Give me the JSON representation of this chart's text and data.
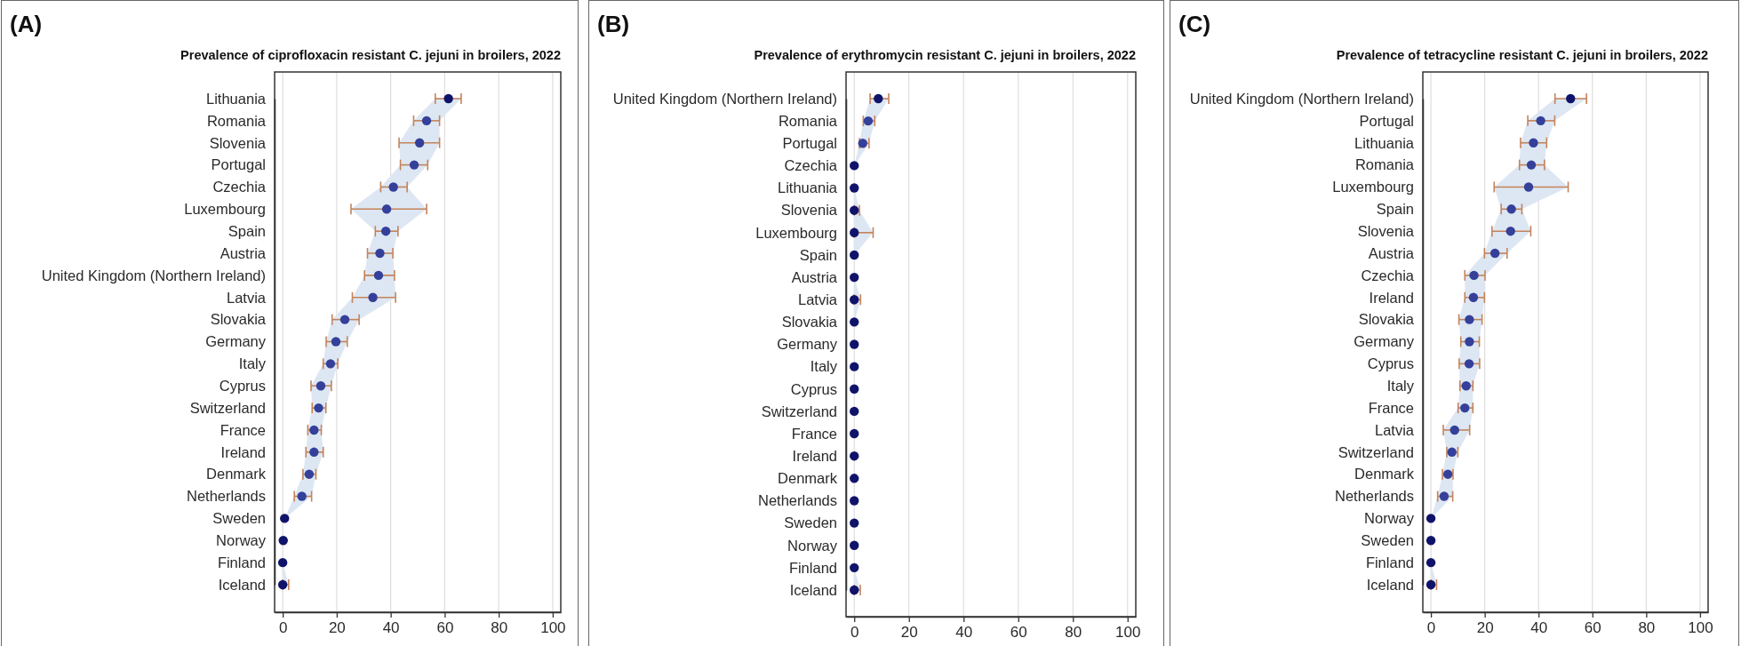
{
  "chart_data": [
    {
      "type": "scatter",
      "orientation": "horizontal",
      "title": "Prevalence of ciprofloxacin resistant C. jejuni in broilers, 2022",
      "annotations": [
        "(A)"
      ],
      "categories": [
        "Lithuania",
        "Romania",
        "Slovenia",
        "Portugal",
        "Czechia",
        "Luxembourg",
        "Spain",
        "Austria",
        "United Kingdom (Northern Ireland)",
        "Latvia",
        "Slovakia",
        "Germany",
        "Italy",
        "Cyprus",
        "Switzerland",
        "France",
        "Ireland",
        "Denmark",
        "Netherlands",
        "Sweden",
        "Norway",
        "Finland",
        "Iceland"
      ],
      "series": [
        {
          "values": [
            61.4,
            53.3,
            50.7,
            48.7,
            41.0,
            38.5,
            38.2,
            36.0,
            35.5,
            33.4,
            23.0,
            19.7,
            17.7,
            14.1,
            13.3,
            11.6,
            11.6,
            9.8,
            7.1,
            0.7,
            0.2,
            0,
            0
          ],
          "colors": [
            "#10136a",
            "#34409a",
            "#34409a",
            "#34409a",
            "#34409a",
            "#34409a",
            "#34409a",
            "#34409a",
            "#34409a",
            "#34409a",
            "#34409a",
            "#34409a",
            "#34409a",
            "#34409a",
            "#34409a",
            "#34409a",
            "#34409a",
            "#34409a",
            "#34409a",
            "#10136a",
            "#10136a",
            "#10136a",
            "#10136a"
          ],
          "errors": [
            [
              56.5,
              66.1
            ],
            [
              48.5,
              58.1
            ],
            [
              43.1,
              58.1
            ],
            [
              43.6,
              53.7
            ],
            [
              36.3,
              46.1
            ],
            [
              25.3,
              53.3
            ],
            [
              34.3,
              42.7
            ],
            [
              31.4,
              40.8
            ],
            [
              30.3,
              41.4
            ],
            [
              25.8,
              41.8
            ],
            [
              18.3,
              28.3
            ],
            [
              16.1,
              23.9
            ],
            [
              15.0,
              20.4
            ],
            [
              10.5,
              18.0
            ],
            [
              10.9,
              16.0
            ],
            [
              9.3,
              14.3
            ],
            [
              8.6,
              15.0
            ],
            [
              7.5,
              12.3
            ],
            [
              4.3,
              10.7
            ],
            null,
            null,
            null,
            [
              0,
              2.2
            ]
          ],
          "lower": [
            56.5,
            48.5,
            43.1,
            43.6,
            36.3,
            25.3,
            34.3,
            31.4,
            30.3,
            25.8,
            18.3,
            16.1,
            15.0,
            10.5,
            10.9,
            9.3,
            8.6,
            7.5,
            4.3,
            0.7,
            0.2,
            0,
            0
          ],
          "upper": [
            66.1,
            58.1,
            58.1,
            53.7,
            46.1,
            53.3,
            42.7,
            40.8,
            41.4,
            41.8,
            28.3,
            23.9,
            20.4,
            18.0,
            16.0,
            14.3,
            15.0,
            12.3,
            10.7,
            0.7,
            0.2,
            0,
            2.2
          ]
        }
      ],
      "xlim": [
        -3,
        103
      ],
      "xticks": [
        0,
        20,
        40,
        60,
        80,
        100
      ],
      "grid": "x",
      "marker": "circle"
    },
    {
      "type": "scatter",
      "orientation": "horizontal",
      "title": "Prevalence of erythromycin resistant C. jejuni in broilers, 2022",
      "annotations": [
        "(B)"
      ],
      "categories": [
        "United Kingdom (Northern Ireland)",
        "Romania",
        "Portugal",
        "Czechia",
        "Lithuania",
        "Slovenia",
        "Luxembourg",
        "Spain",
        "Austria",
        "Latvia",
        "Slovakia",
        "Germany",
        "Italy",
        "Cyprus",
        "Switzerland",
        "France",
        "Ireland",
        "Denmark",
        "Netherlands",
        "Sweden",
        "Norway",
        "Finland",
        "Iceland"
      ],
      "series": [
        {
          "values": [
            8.8,
            5.1,
            3.1,
            0,
            0,
            0,
            0,
            0,
            0,
            0,
            0,
            0,
            0,
            0,
            0,
            0,
            0,
            0,
            0,
            0,
            0,
            0,
            0
          ],
          "colors": [
            "#10136a",
            "#34409a",
            "#34409a",
            "#10136a",
            "#10136a",
            "#10136a",
            "#10136a",
            "#10136a",
            "#10136a",
            "#10136a",
            "#10136a",
            "#10136a",
            "#10136a",
            "#10136a",
            "#10136a",
            "#10136a",
            "#10136a",
            "#10136a",
            "#10136a",
            "#10136a",
            "#10136a",
            "#10136a",
            "#10136a"
          ],
          "errors": [
            [
              5.8,
              12.6
            ],
            [
              3.3,
              7.5
            ],
            [
              1.9,
              5.4
            ],
            null,
            null,
            [
              0,
              1.9
            ],
            [
              0,
              6.9
            ],
            null,
            null,
            [
              0,
              2.3
            ],
            null,
            null,
            null,
            null,
            null,
            null,
            null,
            null,
            null,
            null,
            null,
            null,
            [
              0,
              2.2
            ]
          ],
          "lower": [
            5.8,
            3.3,
            1.9,
            0,
            0,
            0,
            0,
            0,
            0,
            0,
            0,
            0,
            0,
            0,
            0,
            0,
            0,
            0,
            0,
            0,
            0,
            0,
            0
          ],
          "upper": [
            12.6,
            7.5,
            5.4,
            0,
            0,
            1.9,
            6.9,
            0,
            0,
            2.3,
            0,
            0,
            0,
            0,
            0,
            0,
            0,
            0,
            0,
            0,
            0,
            0,
            2.2
          ]
        }
      ],
      "xlim": [
        -3,
        103
      ],
      "xticks": [
        0,
        20,
        40,
        60,
        80,
        100
      ],
      "grid": "x",
      "marker": "circle"
    },
    {
      "type": "scatter",
      "orientation": "horizontal",
      "title": "Prevalence of tetracycline resistant C. jejuni in broilers, 2022",
      "annotations": [
        "(C)"
      ],
      "categories": [
        "United Kingdom (Northern Ireland)",
        "Portugal",
        "Lithuania",
        "Romania",
        "Luxembourg",
        "Spain",
        "Slovenia",
        "Austria",
        "Czechia",
        "Ireland",
        "Slovakia",
        "Germany",
        "Cyprus",
        "Italy",
        "France",
        "Latvia",
        "Switzerland",
        "Denmark",
        "Netherlands",
        "Norway",
        "Sweden",
        "Finland",
        "Iceland"
      ],
      "series": [
        {
          "values": [
            51.9,
            40.8,
            38.1,
            37.3,
            36.3,
            29.9,
            29.6,
            23.8,
            16.0,
            15.8,
            14.3,
            14.3,
            14.2,
            13.1,
            12.6,
            8.8,
            7.8,
            6.3,
            4.9,
            0,
            0,
            0,
            0
          ],
          "colors": [
            "#10136a",
            "#34409a",
            "#34409a",
            "#34409a",
            "#34409a",
            "#34409a",
            "#34409a",
            "#34409a",
            "#34409a",
            "#34409a",
            "#34409a",
            "#34409a",
            "#34409a",
            "#34409a",
            "#34409a",
            "#34409a",
            "#34409a",
            "#34409a",
            "#34409a",
            "#10136a",
            "#10136a",
            "#10136a",
            "#10136a"
          ],
          "errors": [
            [
              46.1,
              57.8
            ],
            [
              36.0,
              46.0
            ],
            [
              33.3,
              43.0
            ],
            [
              32.9,
              42.2
            ],
            [
              23.5,
              51.0
            ],
            [
              26.1,
              33.8
            ],
            [
              22.7,
              37.1
            ],
            [
              19.9,
              28.3
            ],
            [
              12.6,
              20.1
            ],
            [
              12.6,
              19.9
            ],
            [
              10.4,
              19.0
            ],
            [
              11.1,
              18.0
            ],
            [
              10.5,
              18.1
            ],
            [
              10.8,
              15.6
            ],
            [
              10.1,
              15.6
            ],
            [
              4.6,
              14.4
            ],
            [
              5.9,
              10.0
            ],
            [
              4.3,
              8.2
            ],
            [
              2.5,
              8.1
            ],
            null,
            null,
            null,
            [
              0,
              2.1
            ]
          ],
          "lower": [
            46.1,
            36.0,
            33.3,
            32.9,
            23.5,
            26.1,
            22.7,
            19.9,
            12.6,
            12.6,
            10.4,
            11.1,
            10.5,
            10.8,
            10.1,
            4.6,
            5.9,
            4.3,
            2.5,
            0,
            0,
            0,
            0
          ],
          "upper": [
            57.8,
            46.0,
            43.0,
            42.2,
            51.0,
            33.8,
            37.1,
            28.3,
            20.1,
            19.9,
            19.0,
            18.0,
            18.1,
            15.6,
            15.6,
            14.4,
            10.0,
            8.2,
            8.1,
            0,
            0,
            0,
            2.1
          ]
        }
      ],
      "xlim": [
        -3,
        103
      ],
      "xticks": [
        0,
        20,
        40,
        60,
        80,
        100
      ],
      "grid": "x",
      "marker": "circle"
    }
  ]
}
